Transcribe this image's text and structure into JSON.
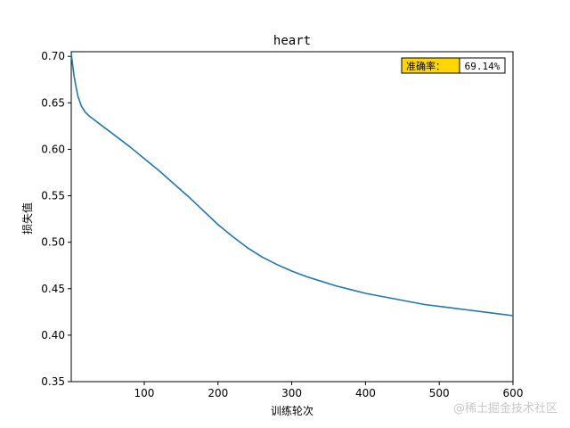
{
  "chart_data": {
    "type": "line",
    "title": "heart",
    "xlabel": "训练轮次",
    "ylabel": "损失值",
    "xlim": [
      1,
      600
    ],
    "ylim": [
      0.35,
      0.705
    ],
    "xticks": [
      100,
      200,
      300,
      400,
      500,
      600
    ],
    "yticks": [
      0.35,
      0.4,
      0.45,
      0.5,
      0.55,
      0.6,
      0.65,
      0.7
    ],
    "grid": false,
    "series": [
      {
        "color": "#1f77b4",
        "x": [
          1,
          3,
          5,
          8,
          10,
          15,
          20,
          25,
          30,
          40,
          50,
          60,
          70,
          80,
          100,
          120,
          140,
          160,
          180,
          200,
          220,
          240,
          260,
          280,
          300,
          320,
          340,
          360,
          380,
          400,
          420,
          440,
          460,
          480,
          500,
          520,
          540,
          560,
          580,
          600
        ],
        "y": [
          0.703,
          0.69,
          0.678,
          0.665,
          0.657,
          0.646,
          0.64,
          0.636,
          0.633,
          0.627,
          0.621,
          0.615,
          0.609,
          0.603,
          0.59,
          0.577,
          0.563,
          0.549,
          0.534,
          0.519,
          0.506,
          0.494,
          0.484,
          0.476,
          0.469,
          0.463,
          0.458,
          0.453,
          0.449,
          0.445,
          0.442,
          0.439,
          0.436,
          0.433,
          0.431,
          0.429,
          0.427,
          0.425,
          0.423,
          0.421
        ]
      }
    ],
    "annotation": {
      "label": "准确率：",
      "value": "69.14%",
      "label_bg": "#ffd700"
    }
  },
  "watermark": "@稀土掘金技术社区"
}
